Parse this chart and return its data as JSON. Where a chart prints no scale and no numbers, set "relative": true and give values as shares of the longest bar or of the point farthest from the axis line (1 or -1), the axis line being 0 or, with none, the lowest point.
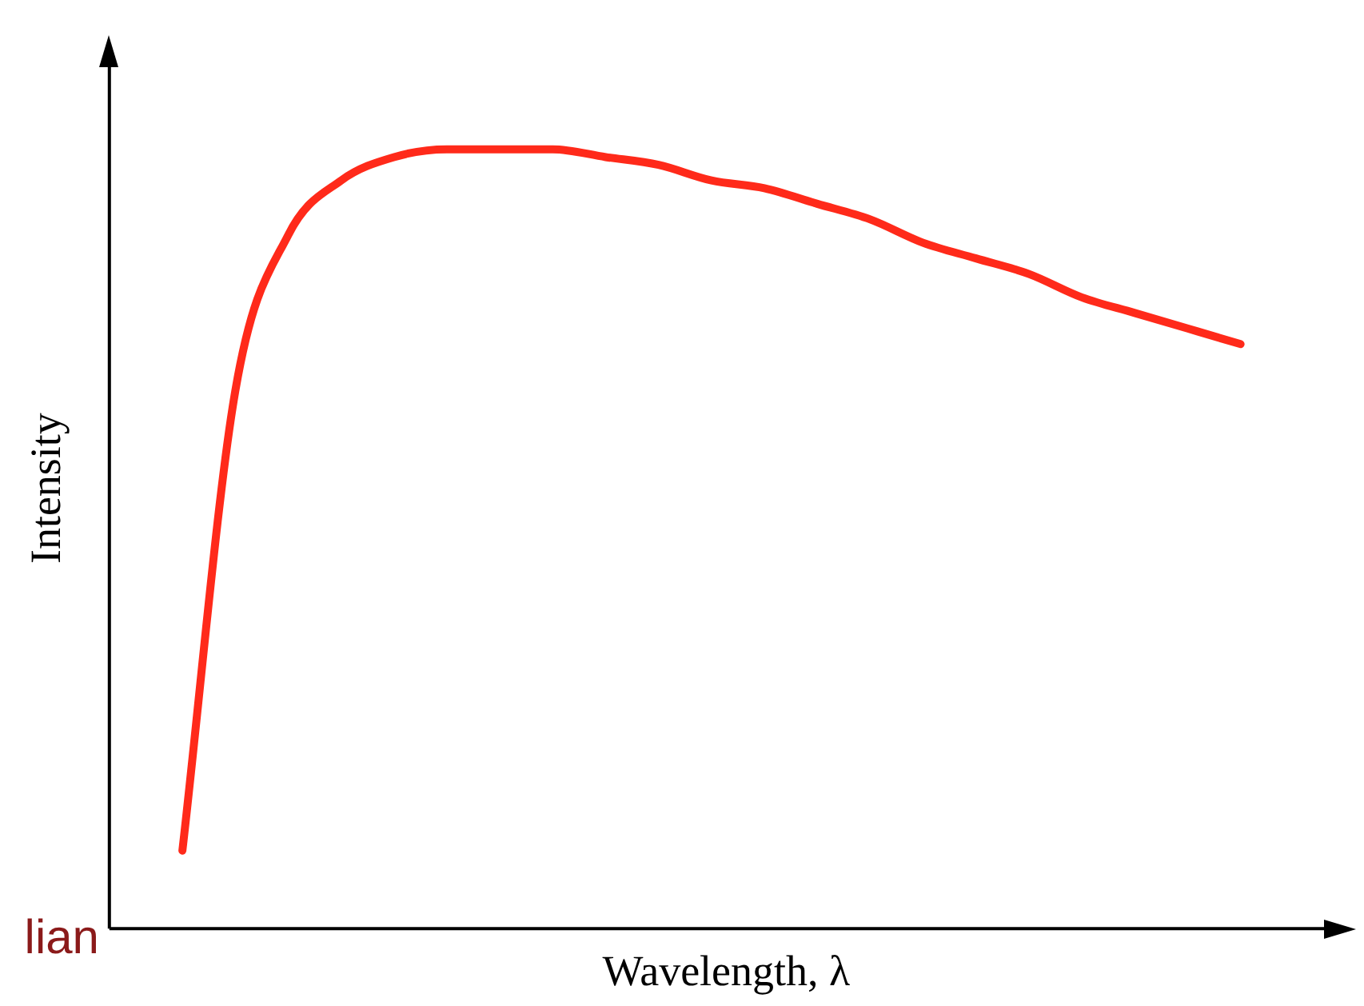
{
  "chart_data": {
    "type": "line",
    "relative": true,
    "xlabel": "Wavelength, λ",
    "ylabel": "Intensity",
    "categories": [
      null,
      null,
      null,
      null,
      null,
      null,
      null,
      null,
      null,
      null,
      null,
      null,
      null,
      null,
      null,
      null,
      null,
      null,
      null,
      null,
      null
    ],
    "series": [
      {
        "color": "#ff2a1a",
        "values": [
          0.1,
          0.69,
          0.89,
          0.96,
          0.99,
          1.0,
          1.0,
          1.0,
          0.99,
          0.98,
          0.96,
          0.95,
          0.93,
          0.91,
          0.88,
          0.86,
          0.84,
          0.81,
          0.79,
          0.77,
          0.75
        ]
      }
    ],
    "grid": false,
    "legend": false,
    "marker": "none",
    "line_style": "solid",
    "annotations": [
      "lian"
    ]
  }
}
